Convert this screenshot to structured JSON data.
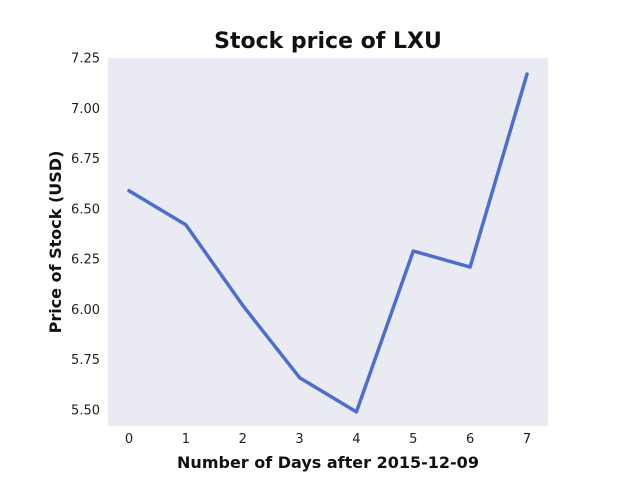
{
  "chart_data": {
    "type": "line",
    "title": "Stock price of LXU",
    "xlabel": "Number of Days after 2015-12-09",
    "ylabel": "Price of Stock (USD)",
    "x": [
      0,
      1,
      2,
      3,
      4,
      5,
      6,
      7
    ],
    "series": [
      {
        "values": [
          6.59,
          6.42,
          6.02,
          5.66,
          5.49,
          6.29,
          6.21,
          7.17
        ]
      }
    ],
    "xticks": [
      "0",
      "1",
      "2",
      "3",
      "4",
      "5",
      "6",
      "7"
    ],
    "yticks": [
      "5.50",
      "5.75",
      "6.00",
      "6.25",
      "6.50",
      "6.75",
      "7.00",
      "7.25"
    ],
    "xlim": [
      -0.37,
      7.37
    ],
    "ylim": [
      5.42,
      7.25
    ],
    "grid": false,
    "colors": {
      "line": "#4c6fcf",
      "plot_background": "#eaeaf2"
    }
  }
}
